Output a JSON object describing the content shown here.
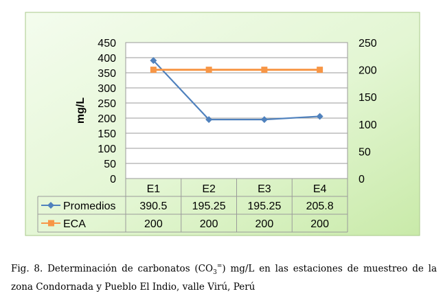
{
  "chart_data": {
    "type": "line",
    "categories": [
      "E1",
      "E2",
      "E3",
      "E4"
    ],
    "series": [
      {
        "name": "Promedios",
        "values": [
          390.5,
          195.25,
          195.25,
          205.8
        ],
        "display": [
          "390.5",
          "195.25",
          "195.25",
          "205.8"
        ],
        "color": "#4f81bd",
        "marker": "diamond",
        "axis": "left"
      },
      {
        "name": "ECA",
        "values": [
          200,
          200,
          200,
          200
        ],
        "display": [
          "200",
          "200",
          "200",
          "200"
        ],
        "color": "#f79646",
        "marker": "square",
        "axis": "right"
      }
    ],
    "ylabel": "mg/L",
    "ylim": [
      0,
      450
    ],
    "yticks": [
      "0",
      "50",
      "100",
      "150",
      "200",
      "250",
      "300",
      "350",
      "400",
      "450"
    ],
    "y2lim": [
      0,
      250
    ],
    "y2ticks": [
      "0",
      "50",
      "100",
      "150",
      "200",
      "250"
    ],
    "grid": true,
    "data_table": true,
    "background_color": "#d9f2c4"
  },
  "caption": {
    "lead": "Fig. 8. Determinación de carbonatos (CO",
    "sub": "3",
    "sup": "=",
    "tail": ") mg/L en las estaciones de muestreo de la zona Condornada y Pueblo El Indio, valle Virú, Perú"
  }
}
